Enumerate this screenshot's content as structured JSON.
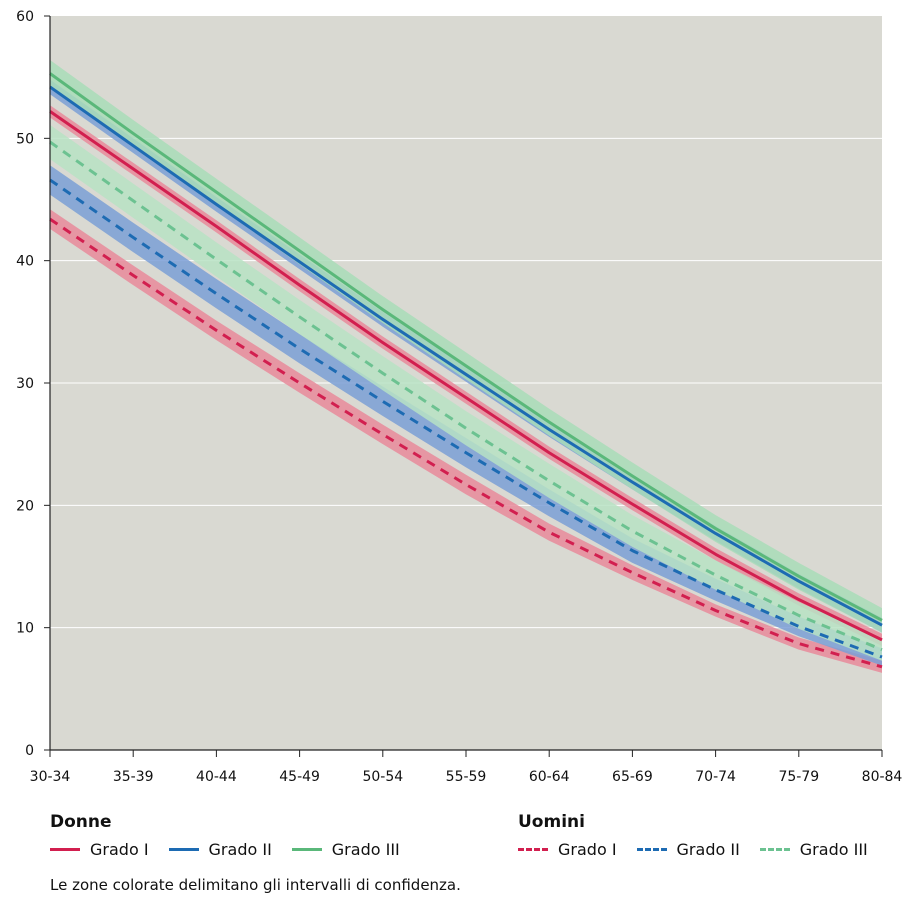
{
  "chart_data": {
    "type": "line",
    "title": "",
    "xlabel": "",
    "ylabel": "",
    "categories": [
      "30-34",
      "35-39",
      "40-44",
      "45-49",
      "50-54",
      "55-59",
      "60-64",
      "65-69",
      "70-74",
      "75-79",
      "80-84"
    ],
    "ylim": [
      0,
      60
    ],
    "yticks": [
      0,
      10,
      20,
      30,
      40,
      50,
      60
    ],
    "grid": true,
    "background": "#d9d9d2",
    "groups": [
      {
        "name": "Donne",
        "series": [
          "Grado I",
          "Grado II",
          "Grado III"
        ]
      },
      {
        "name": "Uomini",
        "series": [
          "Grado I",
          "Grado II",
          "Grado III"
        ]
      }
    ],
    "series": [
      {
        "name": "Grado I",
        "group": "Donne",
        "color": "#d21f4f",
        "band": "#e8899b",
        "style": "solid",
        "values": [
          52.2,
          47.5,
          42.8,
          38.0,
          33.3,
          28.8,
          24.3,
          20.1,
          16.0,
          12.3,
          9.0
        ],
        "ci_lower": [
          51.7,
          47.0,
          42.3,
          37.5,
          32.8,
          28.3,
          23.8,
          19.6,
          15.5,
          11.8,
          8.5
        ],
        "ci_upper": [
          52.7,
          48.0,
          43.3,
          38.5,
          33.8,
          29.3,
          24.8,
          20.6,
          16.5,
          12.8,
          9.5
        ]
      },
      {
        "name": "Grado II",
        "group": "Donne",
        "color": "#1d6bb3",
        "band": "#7a9fd6",
        "style": "solid",
        "values": [
          54.2,
          49.4,
          44.6,
          39.9,
          35.2,
          30.7,
          26.2,
          21.9,
          17.7,
          13.8,
          10.2
        ],
        "ci_lower": [
          53.6,
          48.8,
          44.0,
          39.3,
          34.6,
          30.1,
          25.6,
          21.3,
          17.1,
          13.2,
          9.6
        ],
        "ci_upper": [
          54.8,
          50.0,
          45.2,
          40.5,
          35.8,
          31.3,
          26.8,
          22.5,
          18.3,
          14.4,
          10.8
        ]
      },
      {
        "name": "Grado III",
        "group": "Donne",
        "color": "#5ab87a",
        "band": "#a8dcb9",
        "style": "solid",
        "values": [
          55.3,
          50.4,
          45.6,
          40.8,
          36.0,
          31.4,
          26.8,
          22.4,
          18.1,
          14.2,
          10.6
        ],
        "ci_lower": [
          54.2,
          49.3,
          44.5,
          39.7,
          34.9,
          30.3,
          25.7,
          21.3,
          17.0,
          13.1,
          9.6
        ],
        "ci_upper": [
          56.4,
          51.5,
          46.7,
          41.9,
          37.1,
          32.5,
          27.9,
          23.5,
          19.2,
          15.3,
          11.6
        ]
      },
      {
        "name": "Grado I",
        "group": "Uomini",
        "color": "#d21f4f",
        "band": "#e8899b",
        "style": "dashed",
        "values": [
          43.4,
          38.8,
          34.3,
          30.0,
          25.8,
          21.7,
          17.8,
          14.5,
          11.4,
          8.7,
          6.8
        ],
        "ci_lower": [
          42.6,
          38.0,
          33.5,
          29.2,
          25.0,
          20.9,
          17.1,
          13.9,
          10.9,
          8.2,
          6.3
        ],
        "ci_upper": [
          44.2,
          39.6,
          35.1,
          30.8,
          26.6,
          22.5,
          18.5,
          15.1,
          11.9,
          9.2,
          7.3
        ]
      },
      {
        "name": "Grado II",
        "group": "Uomini",
        "color": "#1d6bb3",
        "band": "#7a9fd6",
        "style": "dashed",
        "values": [
          46.6,
          41.9,
          37.3,
          32.8,
          28.5,
          24.3,
          20.2,
          16.3,
          13.1,
          10.1,
          7.6
        ],
        "ci_lower": [
          45.4,
          40.7,
          36.1,
          31.6,
          27.3,
          23.1,
          19.1,
          15.3,
          12.2,
          9.3,
          6.9
        ],
        "ci_upper": [
          47.8,
          43.1,
          38.5,
          34.0,
          29.7,
          25.5,
          21.3,
          17.3,
          14.0,
          10.9,
          8.3
        ]
      },
      {
        "name": "Grado III",
        "group": "Uomini",
        "color": "#6cc291",
        "band": "#b7e2c4",
        "style": "dashed",
        "values": [
          49.7,
          44.9,
          40.1,
          35.4,
          30.8,
          26.3,
          22.0,
          17.9,
          14.3,
          11.0,
          8.2
        ],
        "ci_lower": [
          48.3,
          43.5,
          38.7,
          34.0,
          29.4,
          24.9,
          20.6,
          16.6,
          13.1,
          9.9,
          7.3
        ],
        "ci_upper": [
          51.1,
          46.3,
          41.5,
          36.8,
          32.2,
          27.7,
          23.4,
          19.2,
          15.5,
          12.1,
          9.1
        ]
      }
    ]
  },
  "legend": {
    "donne": {
      "title": "Donne",
      "items": [
        "Grado I",
        "Grado II",
        "Grado III"
      ]
    },
    "uomini": {
      "title": "Uomini",
      "items": [
        "Grado I",
        "Grado II",
        "Grado III"
      ]
    }
  },
  "note": "Le zone colorate delimitano gli intervalli di confidenza."
}
